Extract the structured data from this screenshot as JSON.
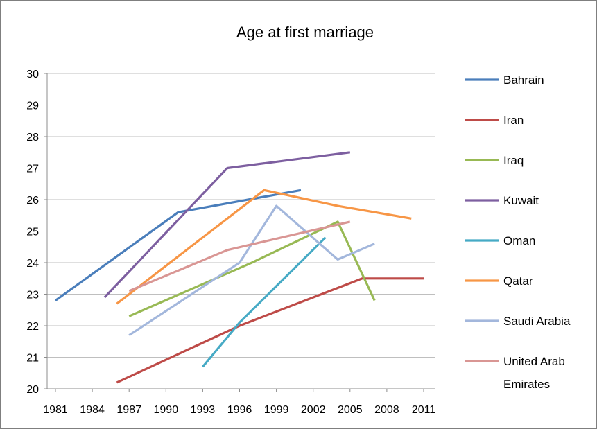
{
  "chart_data": {
    "type": "line",
    "title": "Age at first marriage",
    "xlabel": "",
    "ylabel": "",
    "xlim": [
      1981,
      2011
    ],
    "ylim": [
      20,
      30
    ],
    "x_ticks": [
      "1981",
      "1984",
      "1987",
      "1990",
      "1993",
      "1996",
      "1999",
      "2002",
      "2005",
      "2008",
      "2011"
    ],
    "y_ticks": [
      "20",
      "21",
      "22",
      "23",
      "24",
      "25",
      "26",
      "27",
      "28",
      "29",
      "30"
    ],
    "grid": "horizontal",
    "legend": "right",
    "series": [
      {
        "name": "Bahrain",
        "color": "#4a7ebb",
        "points": [
          [
            1981,
            22.8
          ],
          [
            1991,
            25.6
          ],
          [
            2001,
            26.3
          ]
        ]
      },
      {
        "name": "Iran",
        "color": "#be4b48",
        "points": [
          [
            1986,
            20.2
          ],
          [
            1996,
            22.0
          ],
          [
            2006,
            23.5
          ],
          [
            2011,
            23.5
          ]
        ]
      },
      {
        "name": "Iraq",
        "color": "#98b954",
        "points": [
          [
            1987,
            22.3
          ],
          [
            1997,
            24.0
          ],
          [
            2004,
            25.3
          ],
          [
            2007,
            22.8
          ]
        ]
      },
      {
        "name": "Kuwait",
        "color": "#7d5fa0",
        "points": [
          [
            1985,
            22.9
          ],
          [
            1995,
            27.0
          ],
          [
            2005,
            27.5
          ]
        ]
      },
      {
        "name": "Oman",
        "color": "#46aac5",
        "points": [
          [
            1993,
            20.7
          ],
          [
            1996,
            22.1
          ],
          [
            2003,
            24.8
          ]
        ]
      },
      {
        "name": "Qatar",
        "color": "#f79646",
        "points": [
          [
            1986,
            22.7
          ],
          [
            1998,
            26.3
          ],
          [
            2004,
            25.8
          ],
          [
            2010,
            25.4
          ]
        ]
      },
      {
        "name": "Saudi Arabia",
        "color": "#a3b7dc",
        "points": [
          [
            1987,
            21.7
          ],
          [
            1996,
            24.0
          ],
          [
            1999,
            25.8
          ],
          [
            2004,
            24.1
          ],
          [
            2007,
            24.6
          ]
        ]
      },
      {
        "name": "United Arab Emirates",
        "name_lines": [
          "United Arab",
          "Emirates"
        ],
        "color": "#d99694",
        "points": [
          [
            1987,
            23.1
          ],
          [
            1995,
            24.4
          ],
          [
            2005,
            25.3
          ]
        ]
      }
    ]
  }
}
